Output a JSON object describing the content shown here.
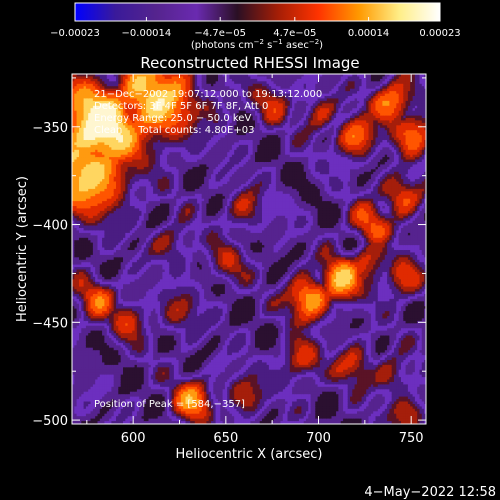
{
  "chart_data": {
    "type": "heatmap",
    "title": "Reconstructed RHESSI Image",
    "xlabel": "Heliocentric X (arcsec)",
    "ylabel": "Heliocentric Y (arcsec)",
    "xlim": [
      567,
      758
    ],
    "ylim": [
      -502,
      -323
    ],
    "x_ticks": [
      600,
      650,
      700,
      750
    ],
    "y_ticks": [
      -350,
      -400,
      -450,
      -500
    ],
    "x_tick_labels": [
      "600",
      "650",
      "700",
      "750"
    ],
    "y_tick_labels": [
      "−350",
      "−400",
      "−450",
      "−500"
    ],
    "colorbar": {
      "range": [
        -0.00023,
        0.00023
      ],
      "ticks": [
        -0.00023,
        -0.00014,
        -4.7e-05,
        4.7e-05,
        0.00014,
        0.00023
      ],
      "tick_labels": [
        "−0.00023",
        "−0.00014",
        "−4.7e−05",
        "4.7e−05",
        "0.00014",
        "0.00023"
      ],
      "units_prefix": "(photons cm",
      "units_sup1": "−2",
      "units_mid1": " s",
      "units_sup2": "−1",
      "units_mid2": " asec",
      "units_sup3": "−2",
      "units_suffix": ")",
      "colors": [
        "#0000ff",
        "#3a1a9a",
        "#55248e",
        "#6a2ab0",
        "#2a0f24",
        "#a41e06",
        "#ff3300",
        "#ff9900",
        "#ffee88",
        "#ffffff"
      ]
    },
    "annotations": [
      "21−Dec−2002 19:07:12.000 to 19:13:12.000",
      "Detectors: 3F 4F 5F 6F 7F 8F, Att 0",
      "Energy Range: 25.0 − 50.0 keV",
      "Clean     Total counts: 4.80E+03",
      "Position of Peak = [584,−357]"
    ],
    "peak": {
      "x": 584,
      "y": -357
    },
    "hotspots": [
      {
        "x": 582,
        "y": -350,
        "level": 1.0
      },
      {
        "x": 610,
        "y": -337,
        "level": 0.78
      },
      {
        "x": 576,
        "y": -372,
        "level": 0.8
      },
      {
        "x": 740,
        "y": -337,
        "level": 0.62
      },
      {
        "x": 720,
        "y": -355,
        "level": 0.55
      },
      {
        "x": 752,
        "y": -352,
        "level": 0.55
      },
      {
        "x": 745,
        "y": -385,
        "level": 0.5
      },
      {
        "x": 728,
        "y": -400,
        "level": 0.45
      },
      {
        "x": 712,
        "y": -428,
        "level": 0.7
      },
      {
        "x": 695,
        "y": -438,
        "level": 0.72
      },
      {
        "x": 728,
        "y": -420,
        "level": 0.45
      },
      {
        "x": 745,
        "y": -428,
        "level": 0.42
      },
      {
        "x": 660,
        "y": -392,
        "level": 0.32
      },
      {
        "x": 622,
        "y": -410,
        "level": 0.3
      },
      {
        "x": 650,
        "y": -420,
        "level": 0.28
      },
      {
        "x": 598,
        "y": -448,
        "level": 0.35
      },
      {
        "x": 625,
        "y": -445,
        "level": 0.3
      },
      {
        "x": 580,
        "y": -438,
        "level": 0.42
      },
      {
        "x": 632,
        "y": -490,
        "level": 0.55
      },
      {
        "x": 660,
        "y": -487,
        "level": 0.35
      },
      {
        "x": 690,
        "y": -470,
        "level": 0.42
      },
      {
        "x": 720,
        "y": -472,
        "level": 0.38
      },
      {
        "x": 740,
        "y": -478,
        "level": 0.32
      },
      {
        "x": 748,
        "y": -497,
        "level": 0.32
      },
      {
        "x": 675,
        "y": -337,
        "level": 0.3
      },
      {
        "x": 700,
        "y": -343,
        "level": 0.32
      },
      {
        "x": 642,
        "y": -340,
        "level": 0.22
      }
    ]
  },
  "footer": {
    "date": "4−May−2022 12:58"
  }
}
